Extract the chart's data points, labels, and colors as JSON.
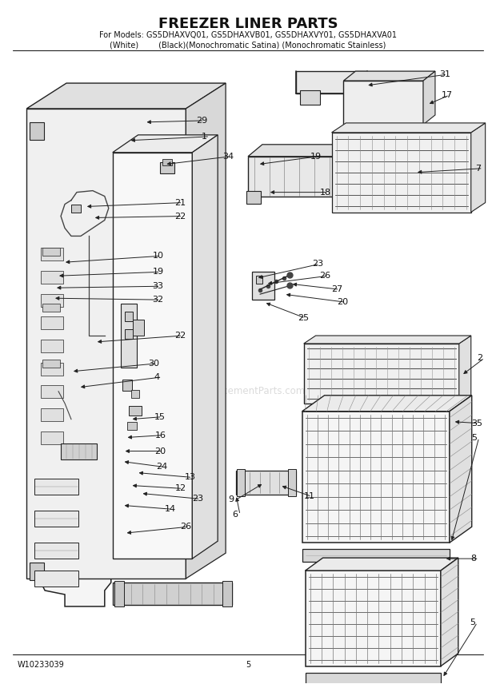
{
  "title": "FREEZER LINER PARTS",
  "subtitle_line1": "For Models: GS5DHAXVQ01, GS5DHAXVB01, GS5DHAXVY01, GS5DHAXVA01",
  "subtitle_line2": "(White)        (Black)(Monochromatic Satina) (Monochromatic Stainless)",
  "footer_left": "W10233039",
  "footer_center": "5",
  "bg_color": "#ffffff",
  "line_color": "#222222"
}
